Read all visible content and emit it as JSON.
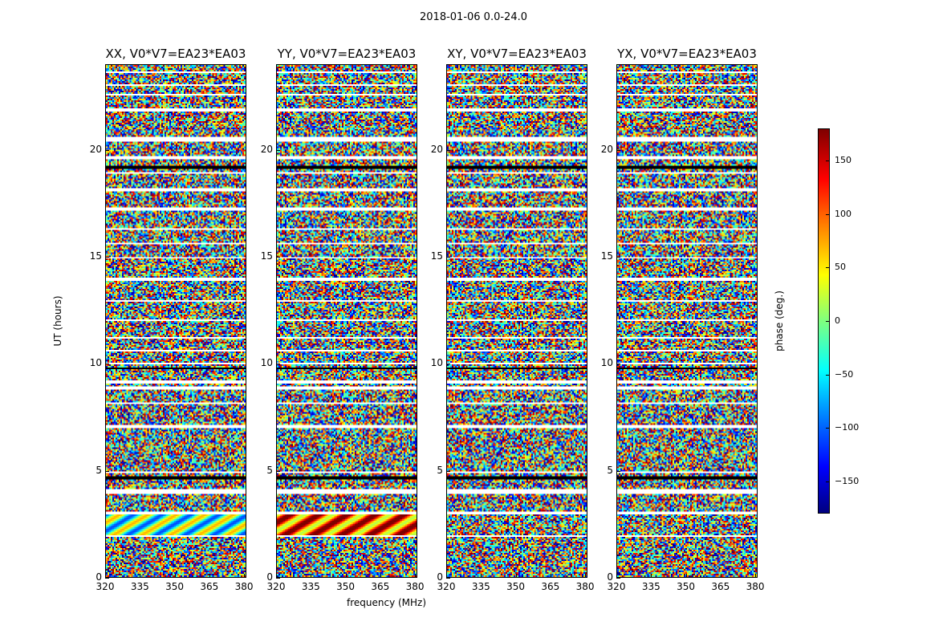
{
  "figure_title": "2018-01-06 0.0-24.0",
  "chart_data": {
    "type": "heatmap",
    "panels": [
      {
        "title": "XX, V0*V7=EA23*EA03"
      },
      {
        "title": "YY, V0*V7=EA23*EA03"
      },
      {
        "title": "XY, V0*V7=EA23*EA03"
      },
      {
        "title": "YX, V0*V7=EA23*EA03"
      }
    ],
    "xlabel": "frequency (MHz)",
    "ylabel": "UT (hours)",
    "xlim": [
      320,
      381
    ],
    "ylim": [
      0,
      24
    ],
    "x_ticks": [
      320,
      335,
      350,
      365,
      380
    ],
    "y_ticks": [
      0,
      5,
      10,
      15,
      20
    ],
    "colormap": "jet",
    "colorbar": {
      "label": "phase (deg.)",
      "range": [
        -180,
        180
      ],
      "ticks": [
        150,
        100,
        50,
        0,
        -50,
        -100,
        -150
      ],
      "tick_labels": [
        "150",
        "100",
        "50",
        "0",
        "−50",
        "−100",
        "−150"
      ]
    }
  }
}
